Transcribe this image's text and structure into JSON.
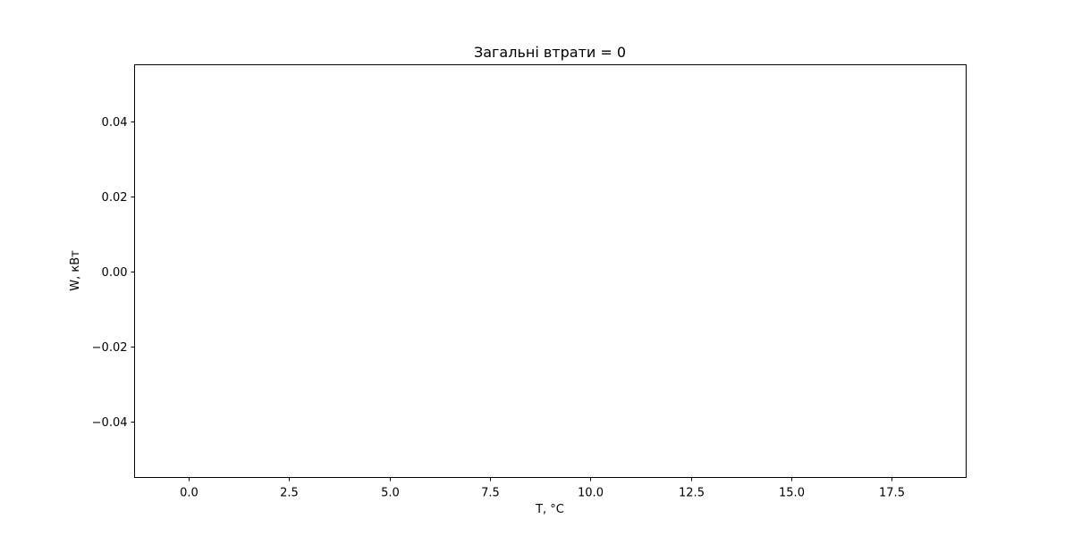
{
  "chart_data": {
    "type": "line",
    "title": "Загальні втрати = 0",
    "xlabel": "T, °C",
    "ylabel": "W, кВт",
    "xlim": [
      -1.35,
      19.35
    ],
    "ylim": [
      -0.055,
      0.055
    ],
    "x_ticks": [
      0.0,
      2.5,
      5.0,
      7.5,
      10.0,
      12.5,
      15.0,
      17.5
    ],
    "x_tick_labels": [
      "0.0",
      "2.5",
      "5.0",
      "7.5",
      "10.0",
      "12.5",
      "15.0",
      "17.5"
    ],
    "y_ticks": [
      -0.04,
      -0.02,
      0.0,
      0.02,
      0.04
    ],
    "y_tick_labels": [
      "−0.04",
      "−0.02",
      "0.00",
      "0.02",
      "0.04"
    ],
    "series": [],
    "grid": false,
    "legend": "none"
  }
}
